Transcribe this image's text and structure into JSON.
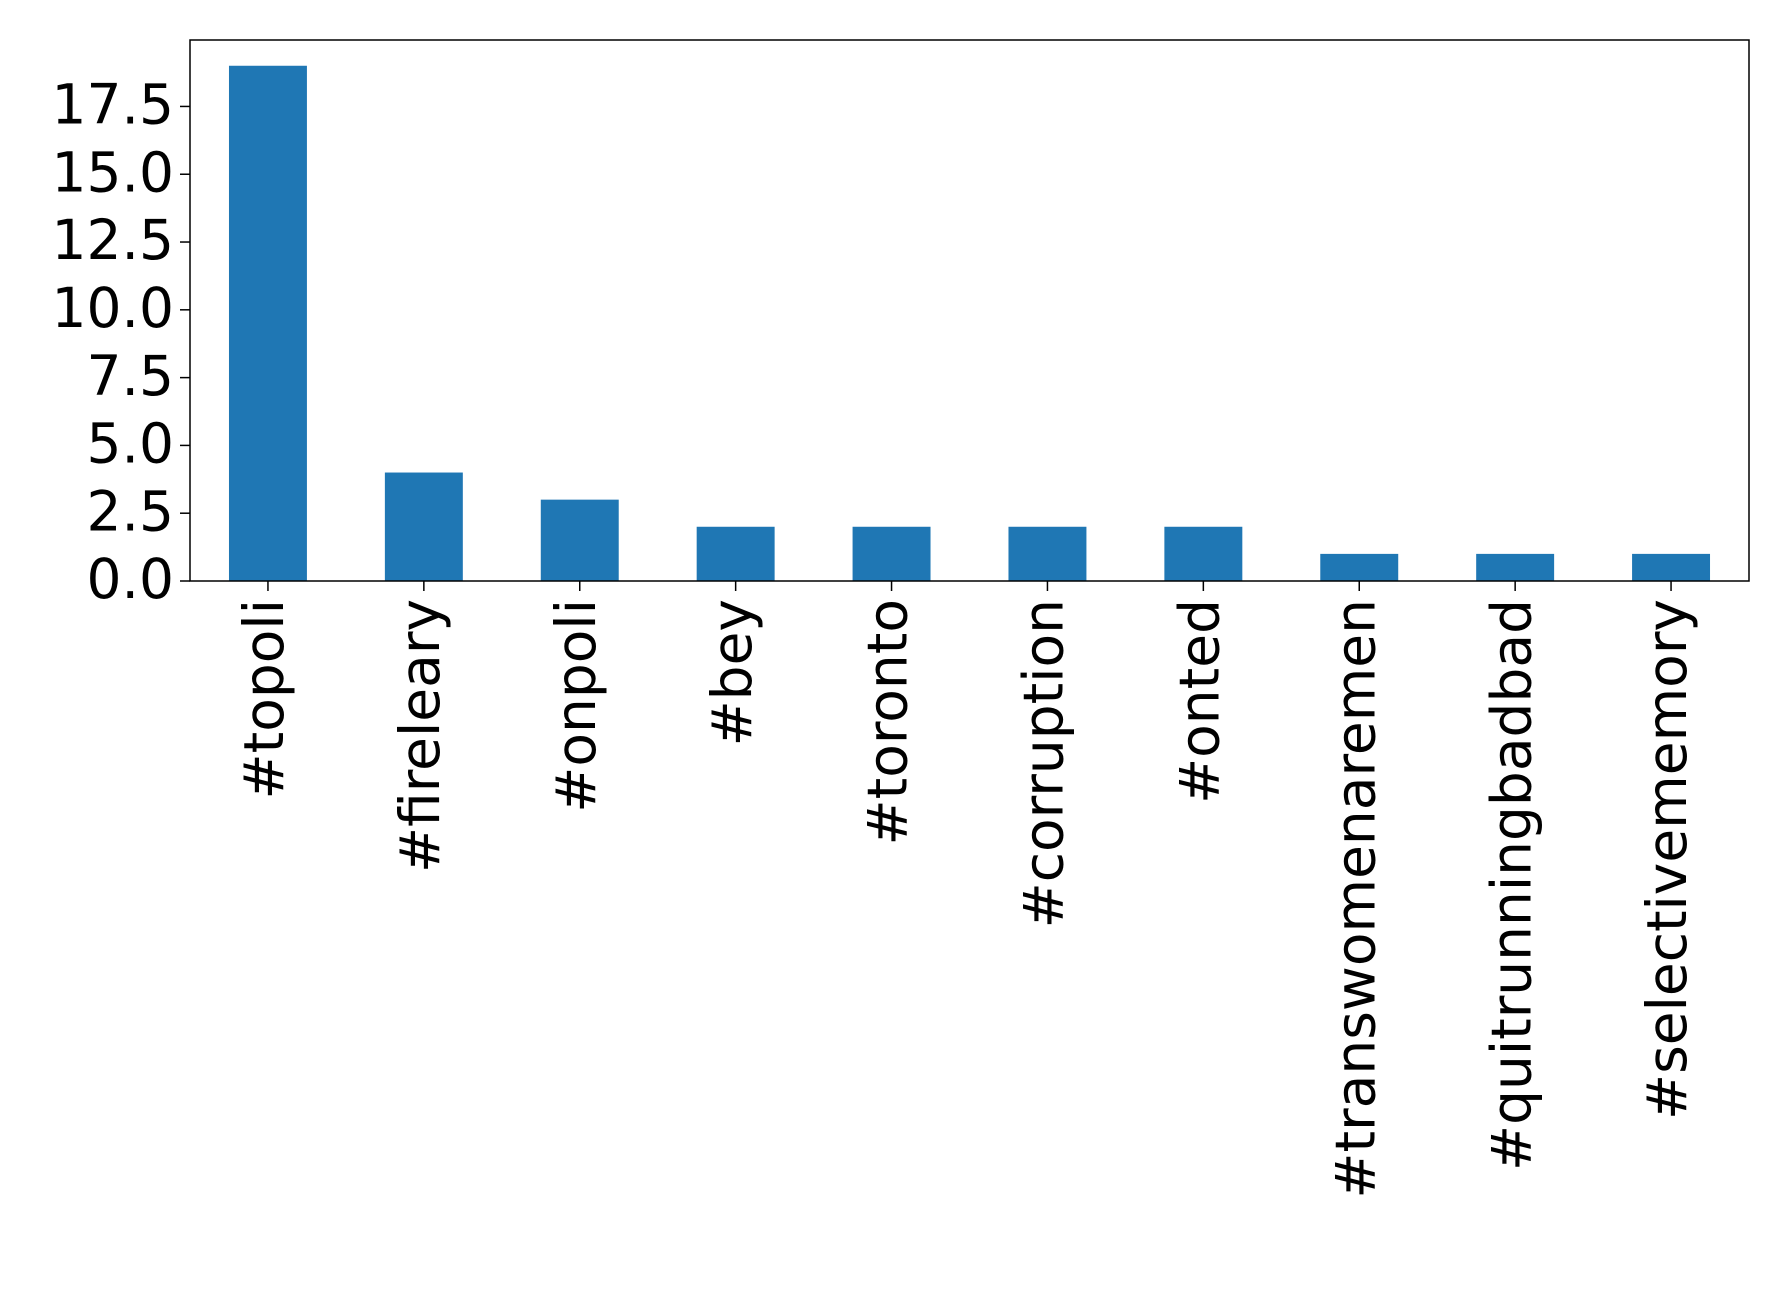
{
  "chart_data": {
    "type": "bar",
    "categories": [
      "#topoli",
      "#fireleary",
      "#onpoli",
      "#bey",
      "#toronto",
      "#corruption",
      "#onted",
      "#transwomenaremen",
      "#quitrunningbadbad",
      "#selectivememory"
    ],
    "values": [
      19,
      4,
      3,
      2,
      2,
      2,
      2,
      1,
      1,
      1
    ],
    "color": "#1f77b4",
    "ylim": [
      0,
      19.95
    ],
    "yticks": [
      {
        "value": 0,
        "label": "0.0"
      },
      2.5,
      {
        "value": 5,
        "label": "5.0"
      },
      7.5,
      {
        "value": 10,
        "label": "10.0"
      },
      12.5,
      {
        "value": 15,
        "label": "15.0"
      },
      17.5
    ],
    "grid": false
  }
}
